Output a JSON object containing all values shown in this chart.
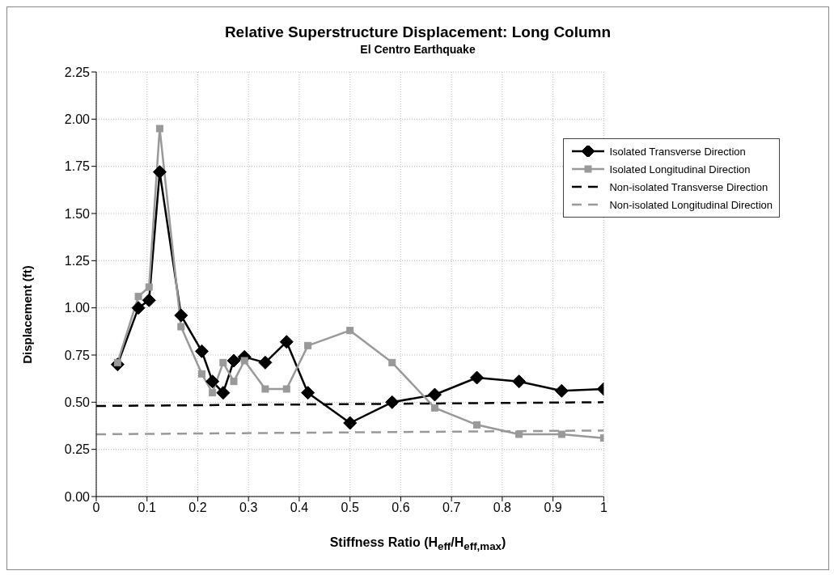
{
  "chart_data": {
    "type": "line",
    "title": "Relative Superstructure Displacement: Long Column",
    "subtitle": "El Centro Earthquake",
    "xlabel": "Stiffness Ratio (H$_{eff}$/H$_{eff,max}$)",
    "ylabel": "Displacement (ft)",
    "series": [
      {
        "name": "Isolated Transverse Direction",
        "color": "#000000",
        "marker": "diamond",
        "line_style": "solid",
        "x": [
          0.042,
          0.083,
          0.104,
          0.125,
          0.167,
          0.208,
          0.229,
          0.25,
          0.271,
          0.292,
          0.333,
          0.375,
          0.417,
          0.5,
          0.583,
          0.667,
          0.75,
          0.833,
          0.917,
          1.0
        ],
        "values": [
          0.7,
          1.0,
          1.04,
          1.72,
          0.96,
          0.77,
          0.61,
          0.55,
          0.72,
          0.74,
          0.71,
          0.82,
          0.55,
          0.39,
          0.5,
          0.54,
          0.63,
          0.61,
          0.56,
          0.57
        ]
      },
      {
        "name": "Isolated Longitudinal Direction",
        "color": "#999999",
        "marker": "square",
        "line_style": "solid",
        "x": [
          0.042,
          0.083,
          0.104,
          0.125,
          0.167,
          0.208,
          0.229,
          0.25,
          0.271,
          0.292,
          0.333,
          0.375,
          0.417,
          0.5,
          0.583,
          0.667,
          0.75,
          0.833,
          0.917,
          1.0
        ],
        "values": [
          0.71,
          1.06,
          1.11,
          1.95,
          0.9,
          0.65,
          0.55,
          0.71,
          0.61,
          0.72,
          0.57,
          0.57,
          0.8,
          0.88,
          0.71,
          0.47,
          0.38,
          0.33,
          0.33,
          0.31
        ]
      },
      {
        "name": "Non-isolated Transverse Direction",
        "color": "#000000",
        "marker": "none",
        "line_style": "dashed",
        "x": [
          0,
          1
        ],
        "values": [
          0.48,
          0.5
        ]
      },
      {
        "name": "Non-isolated Longitudinal Direction",
        "color": "#999999",
        "marker": "none",
        "line_style": "dashed",
        "x": [
          0,
          1
        ],
        "values": [
          0.33,
          0.35
        ]
      }
    ],
    "xlim": [
      0,
      1
    ],
    "xticks": [
      0,
      0.1,
      0.2,
      0.3,
      0.4,
      0.5,
      0.6,
      0.7,
      0.8,
      0.9,
      1
    ],
    "ylim": [
      0,
      2.25
    ],
    "yticks": [
      {
        "value": 0,
        "label": "0.00"
      },
      {
        "value": 0.25,
        "label": "0.25"
      },
      {
        "value": 0.5,
        "label": "0.50"
      },
      {
        "value": 0.75,
        "label": "0.75"
      },
      {
        "value": 1,
        "label": "1.00"
      },
      {
        "value": 1.25,
        "label": "1.25"
      },
      {
        "value": 1.5,
        "label": "1.50"
      },
      {
        "value": 1.75,
        "label": "1.75"
      },
      {
        "value": 2,
        "label": "2.00"
      },
      {
        "value": 2.25,
        "label": "2.25"
      }
    ],
    "grid": true,
    "legend": "top right"
  }
}
